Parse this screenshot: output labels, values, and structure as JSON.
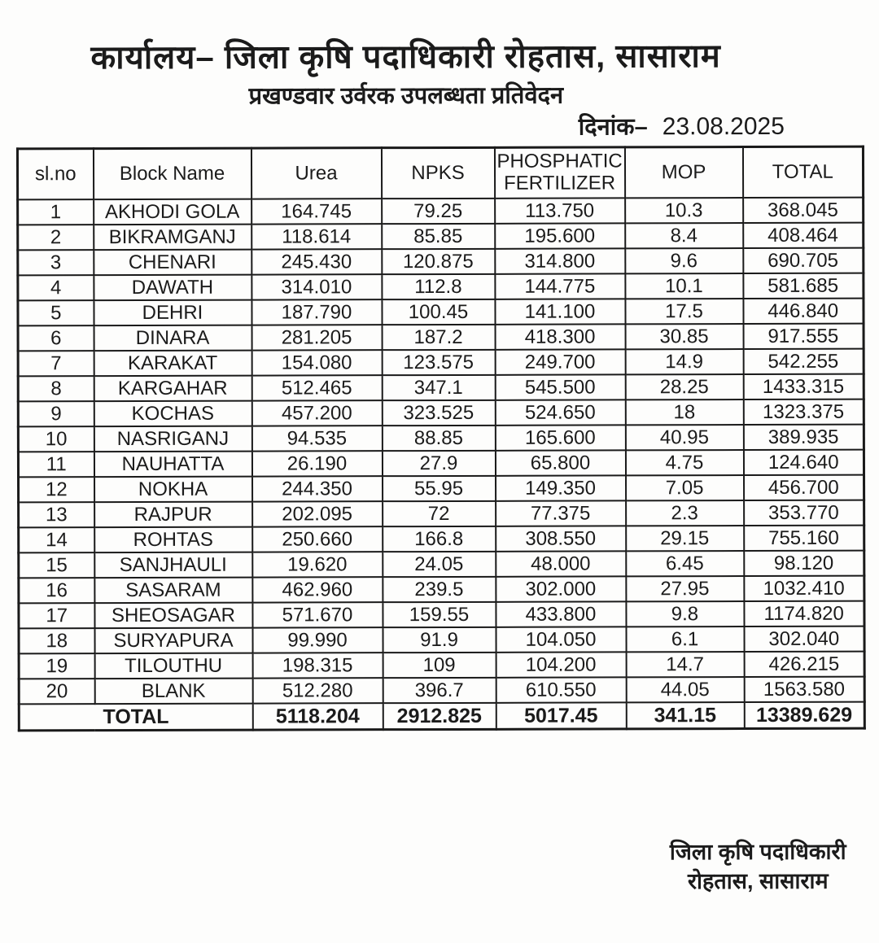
{
  "document": {
    "title": "कार्यालय– जिला कृषि पदाधिकारी रोहतास, सासाराम",
    "subtitle": "प्रखण्डवार उर्वरक उपलब्धता प्रतिवेदन",
    "date_label": "दिनांक–",
    "date_value": "23.08.2025"
  },
  "table": {
    "columns": [
      "sl.no",
      "Block Name",
      "Urea",
      "NPKS",
      "PHOSPHATIC FERTILIZER",
      "MOP",
      "TOTAL"
    ],
    "rows": [
      [
        "1",
        "AKHODI GOLA",
        "164.745",
        "79.25",
        "113.750",
        "10.3",
        "368.045"
      ],
      [
        "2",
        "BIKRAMGANJ",
        "118.614",
        "85.85",
        "195.600",
        "8.4",
        "408.464"
      ],
      [
        "3",
        "CHENARI",
        "245.430",
        "120.875",
        "314.800",
        "9.6",
        "690.705"
      ],
      [
        "4",
        "DAWATH",
        "314.010",
        "112.8",
        "144.775",
        "10.1",
        "581.685"
      ],
      [
        "5",
        "DEHRI",
        "187.790",
        "100.45",
        "141.100",
        "17.5",
        "446.840"
      ],
      [
        "6",
        "DINARA",
        "281.205",
        "187.2",
        "418.300",
        "30.85",
        "917.555"
      ],
      [
        "7",
        "KARAKAT",
        "154.080",
        "123.575",
        "249.700",
        "14.9",
        "542.255"
      ],
      [
        "8",
        "KARGAHAR",
        "512.465",
        "347.1",
        "545.500",
        "28.25",
        "1433.315"
      ],
      [
        "9",
        "KOCHAS",
        "457.200",
        "323.525",
        "524.650",
        "18",
        "1323.375"
      ],
      [
        "10",
        "NASRIGANJ",
        "94.535",
        "88.85",
        "165.600",
        "40.95",
        "389.935"
      ],
      [
        "11",
        "NAUHATTA",
        "26.190",
        "27.9",
        "65.800",
        "4.75",
        "124.640"
      ],
      [
        "12",
        "NOKHA",
        "244.350",
        "55.95",
        "149.350",
        "7.05",
        "456.700"
      ],
      [
        "13",
        "RAJPUR",
        "202.095",
        "72",
        "77.375",
        "2.3",
        "353.770"
      ],
      [
        "14",
        "ROHTAS",
        "250.660",
        "166.8",
        "308.550",
        "29.15",
        "755.160"
      ],
      [
        "15",
        "SANJHAULI",
        "19.620",
        "24.05",
        "48.000",
        "6.45",
        "98.120"
      ],
      [
        "16",
        "SASARAM",
        "462.960",
        "239.5",
        "302.000",
        "27.95",
        "1032.410"
      ],
      [
        "17",
        "SHEOSAGAR",
        "571.670",
        "159.55",
        "433.800",
        "9.8",
        "1174.820"
      ],
      [
        "18",
        "SURYAPURA",
        "99.990",
        "91.9",
        "104.050",
        "6.1",
        "302.040"
      ],
      [
        "19",
        "TILOUTHU",
        "198.315",
        "109",
        "104.200",
        "14.7",
        "426.215"
      ],
      [
        "20",
        "BLANK",
        "512.280",
        "396.7",
        "610.550",
        "44.05",
        "1563.580"
      ]
    ],
    "total_row": {
      "label": "TOTAL",
      "values": [
        "5118.204",
        "2912.825",
        "5017.45",
        "341.15",
        "13389.629"
      ]
    }
  },
  "signature": {
    "line1": "जिला कृषि पदाधिकारी",
    "line2": "रोहतास, सासाराम"
  }
}
